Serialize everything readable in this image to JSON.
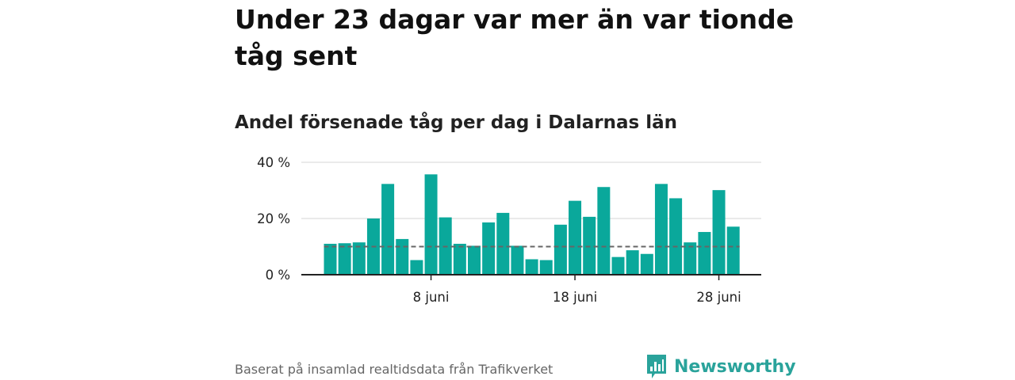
{
  "title": "Under 23 dagar var mer än var tionde tåg sent",
  "subtitle": "Andel försenade tåg per dag i Dalarnas län",
  "source": "Baserat på insamlad realtidsdata från Trafikverket",
  "brand": {
    "name": "Newsworthy",
    "logo_icon": "newsworthy-chart-bubble-icon",
    "color": "#2aa39b"
  },
  "colors": {
    "bar": "#0aa89b",
    "reference": "#666666",
    "grid": "#dddddd",
    "axis": "#222222"
  },
  "chart_data": {
    "type": "bar",
    "x_start_day": 1,
    "month": "juni",
    "values": [
      11,
      11.2,
      11.5,
      20,
      32.3,
      12.7,
      5.2,
      35.7,
      20.4,
      11,
      10.3,
      18.6,
      22,
      10.3,
      5.5,
      5.2,
      17.8,
      26.3,
      20.6,
      31.2,
      6.3,
      8.7,
      7.4,
      32.3,
      27.2,
      11.5,
      15.2,
      30.1,
      17.1
    ],
    "reference_line": 10,
    "ylim": [
      0,
      40
    ],
    "yticks": [
      {
        "value": 0,
        "label": "0 %"
      },
      {
        "value": 20,
        "label": "20 %"
      },
      {
        "value": 40,
        "label": "40 %"
      }
    ],
    "xticks": [
      {
        "day": 8,
        "label": "8 juni"
      },
      {
        "day": 18,
        "label": "18 juni"
      },
      {
        "day": 28,
        "label": "28 juni"
      }
    ],
    "grid": true,
    "legend": "none"
  }
}
